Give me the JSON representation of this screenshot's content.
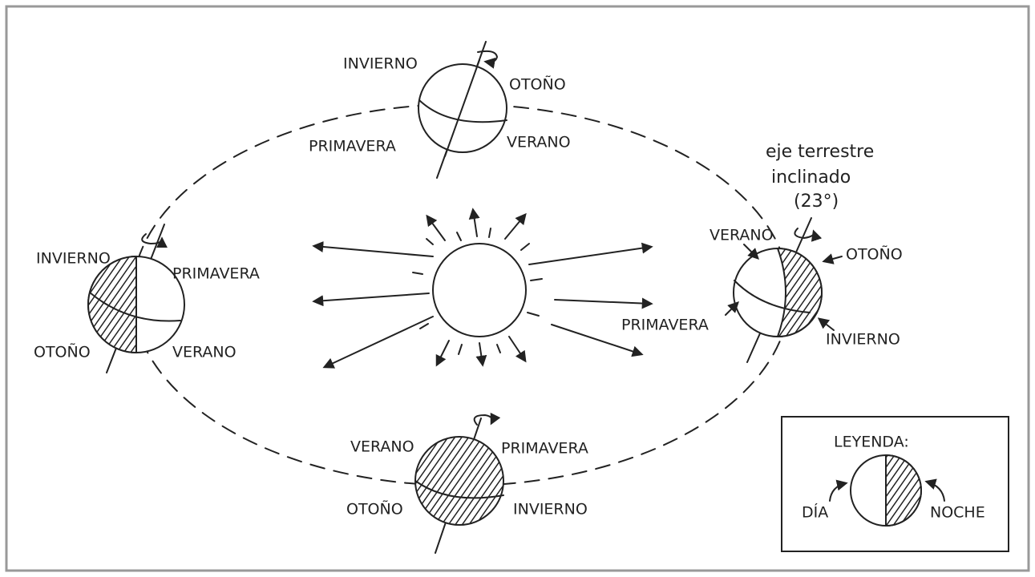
{
  "globes": [
    {
      "labels": [
        "INVIERNO",
        "OTOÑO",
        "PRIMAVERA",
        "VERANO"
      ]
    },
    {
      "labels": [
        "VERANO",
        "OTOÑO",
        "PRIMAVERA",
        "INVIERNO"
      ]
    },
    {
      "labels": [
        "INVIERNO",
        "PRIMAVERA",
        "OTOÑO",
        "VERANO"
      ]
    },
    {
      "labels": [
        "VERANO",
        "PRIMAVERA",
        "OTOÑO",
        "INVIERNO"
      ]
    }
  ],
  "annotation": {
    "lines": [
      "eje terrestre",
      "inclinado",
      "(23°)"
    ]
  },
  "legend": {
    "title": "LEYENDA:",
    "day": "DÍA",
    "night": "NOCHE"
  }
}
